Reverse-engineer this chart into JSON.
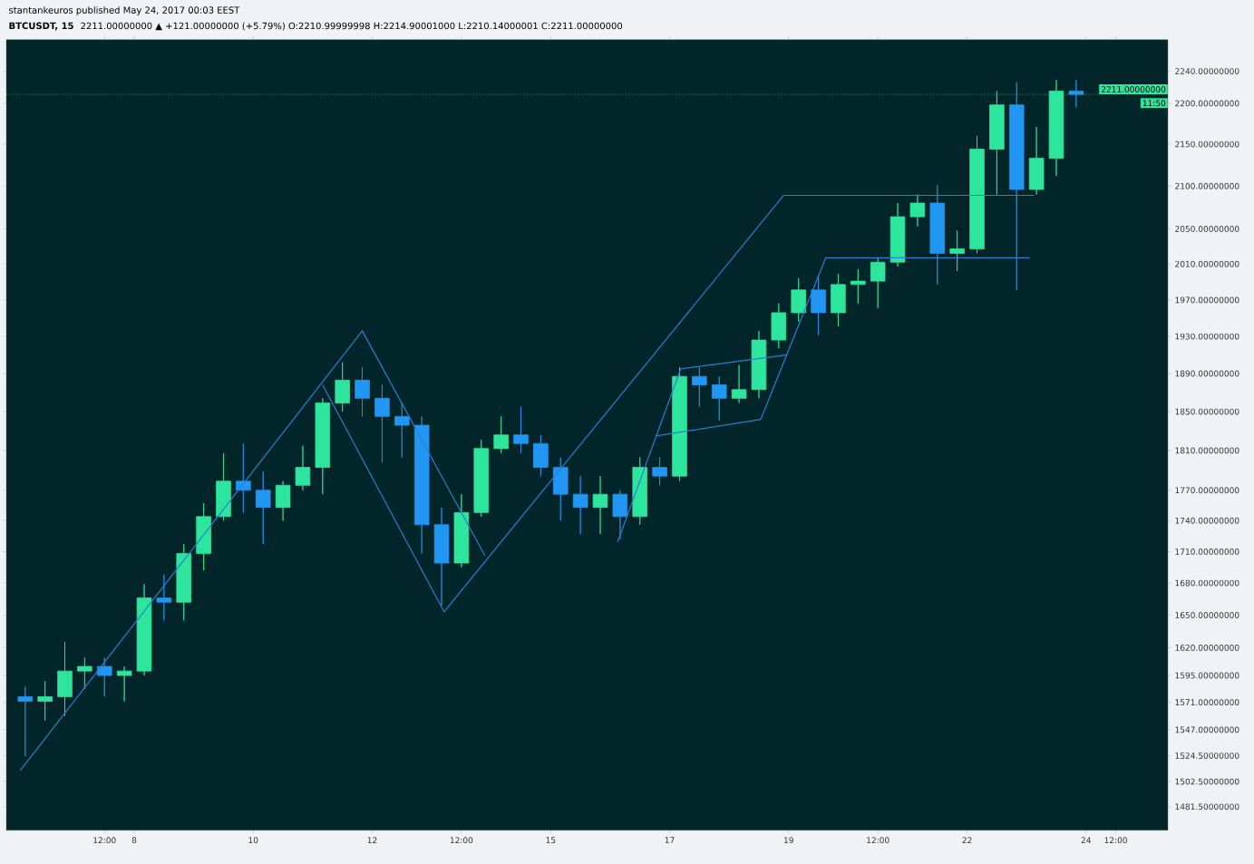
{
  "chart_data": {
    "type": "candlestick",
    "title": "BTCUSDT, 15",
    "subtitle": "2211.00000000 ▲ +121.00000000 (+5.79%) O:2210.99999998 H:2214.90001000 L:2210.14000001 C:2211.00000000",
    "annotations": [
      "stantankeuros published May 24, 2017 00:03 EEST",
      "11:50"
    ],
    "x": [
      "2017-05-06T04:00",
      "2017-05-06T12:00",
      "2017-05-06T20:00",
      "2017-05-07T04:00",
      "2017-05-07T12:00",
      "2017-05-07T20:00",
      "2017-05-08T04:00",
      "2017-05-08T12:00",
      "2017-05-08T20:00",
      "2017-05-09T04:00",
      "2017-05-09T12:00",
      "2017-05-09T20:00",
      "2017-05-10T04:00",
      "2017-05-10T12:00",
      "2017-05-10T20:00",
      "2017-05-11T04:00",
      "2017-05-11T12:00",
      "2017-05-11T20:00",
      "2017-05-12T04:00",
      "2017-05-12T12:00",
      "2017-05-12T20:00",
      "2017-05-13T04:00",
      "2017-05-13T12:00",
      "2017-05-13T20:00",
      "2017-05-14T04:00",
      "2017-05-14T12:00",
      "2017-05-14T20:00",
      "2017-05-15T04:00",
      "2017-05-15T12:00",
      "2017-05-15T20:00",
      "2017-05-16T04:00",
      "2017-05-16T12:00",
      "2017-05-16T20:00",
      "2017-05-17T04:00",
      "2017-05-17T12:00",
      "2017-05-17T20:00",
      "2017-05-18T04:00",
      "2017-05-18T12:00",
      "2017-05-18T20:00",
      "2017-05-19T04:00",
      "2017-05-19T12:00",
      "2017-05-19T20:00",
      "2017-05-20T04:00",
      "2017-05-20T12:00",
      "2017-05-20T20:00",
      "2017-05-21T04:00",
      "2017-05-21T12:00",
      "2017-05-21T20:00",
      "2017-05-22T04:00",
      "2017-05-22T12:00",
      "2017-05-22T20:00",
      "2017-05-23T04:00",
      "2017-05-23T12:00",
      "2017-05-23T20:00"
    ],
    "ohlc": [
      [
        1576,
        1585,
        1524,
        1572
      ],
      [
        1572,
        1590,
        1555,
        1576
      ],
      [
        1576,
        1625,
        1559,
        1599
      ],
      [
        1599,
        1611,
        1583,
        1603
      ],
      [
        1603,
        1611,
        1576,
        1595
      ],
      [
        1595,
        1603,
        1572,
        1599
      ],
      [
        1599,
        1679,
        1595,
        1666
      ],
      [
        1666,
        1688,
        1645,
        1662
      ],
      [
        1662,
        1717,
        1645,
        1708
      ],
      [
        1708,
        1757,
        1692,
        1744
      ],
      [
        1744,
        1807,
        1740,
        1779
      ],
      [
        1779,
        1817,
        1748,
        1770
      ],
      [
        1770,
        1789,
        1717,
        1753
      ],
      [
        1753,
        1779,
        1740,
        1775
      ],
      [
        1775,
        1815,
        1770,
        1793
      ],
      [
        1793,
        1864,
        1766,
        1859
      ],
      [
        1859,
        1902,
        1850,
        1883
      ],
      [
        1883,
        1897,
        1845,
        1864
      ],
      [
        1864,
        1878,
        1798,
        1845
      ],
      [
        1845,
        1859,
        1803,
        1836
      ],
      [
        1836,
        1845,
        1708,
        1736
      ],
      [
        1736,
        1753,
        1659,
        1699
      ],
      [
        1699,
        1766,
        1695,
        1748
      ],
      [
        1748,
        1821,
        1744,
        1812
      ],
      [
        1812,
        1845,
        1807,
        1826
      ],
      [
        1826,
        1855,
        1807,
        1817
      ],
      [
        1817,
        1826,
        1784,
        1793
      ],
      [
        1793,
        1803,
        1740,
        1766
      ],
      [
        1766,
        1784,
        1727,
        1753
      ],
      [
        1753,
        1784,
        1727,
        1766
      ],
      [
        1766,
        1770,
        1722,
        1744
      ],
      [
        1744,
        1803,
        1736,
        1793
      ],
      [
        1793,
        1803,
        1775,
        1784
      ],
      [
        1784,
        1897,
        1779,
        1887
      ],
      [
        1887,
        1897,
        1855,
        1878
      ],
      [
        1878,
        1887,
        1841,
        1864
      ],
      [
        1864,
        1899,
        1859,
        1873
      ],
      [
        1873,
        1936,
        1864,
        1926
      ],
      [
        1926,
        1966,
        1917,
        1956
      ],
      [
        1956,
        1994,
        1946,
        1981
      ],
      [
        1981,
        1997,
        1931,
        1956
      ],
      [
        1956,
        1999,
        1941,
        1987
      ],
      [
        1987,
        2004,
        1966,
        1991
      ],
      [
        1991,
        2017,
        1961,
        2012
      ],
      [
        2012,
        2080,
        2007,
        2064
      ],
      [
        2064,
        2090,
        2053,
        2080
      ],
      [
        2080,
        2101,
        1987,
        2022
      ],
      [
        2022,
        2048,
        2002,
        2027
      ],
      [
        2027,
        2160,
        2022,
        2144
      ],
      [
        2144,
        2215,
        2090,
        2198
      ],
      [
        2198,
        2226,
        1981,
        2096
      ],
      [
        2096,
        2171,
        2090,
        2133
      ],
      [
        2133,
        2229,
        2112,
        2215
      ],
      [
        2215,
        2229,
        2195,
        2211
      ]
    ],
    "colors": [
      "#2196f3",
      "#2ee59d",
      "#2ee59d",
      "#2ee59d",
      "#2196f3",
      "#2ee59d",
      "#2ee59d",
      "#2196f3",
      "#2ee59d",
      "#2ee59d",
      "#2ee59d",
      "#2196f3",
      "#2196f3",
      "#2ee59d",
      "#2ee59d",
      "#2ee59d",
      "#2ee59d",
      "#2196f3",
      "#2196f3",
      "#2196f3",
      "#2196f3",
      "#2196f3",
      "#2ee59d",
      "#2ee59d",
      "#2ee59d",
      "#2196f3",
      "#2196f3",
      "#2196f3",
      "#2196f3",
      "#2ee59d",
      "#2196f3",
      "#2ee59d",
      "#2196f3",
      "#2ee59d",
      "#2196f3",
      "#2196f3",
      "#2ee59d",
      "#2ee59d",
      "#2ee59d",
      "#2ee59d",
      "#2196f3",
      "#2ee59d",
      "#2ee59d",
      "#2ee59d",
      "#2ee59d",
      "#2ee59d",
      "#2196f3",
      "#2ee59d",
      "#2ee59d",
      "#2ee59d",
      "#2196f3",
      "#2ee59d",
      "#2ee59d",
      "#2196f3"
    ],
    "series": [
      {
        "type": "line",
        "color": "#2a7fd4",
        "x": [
          "2017-05-06T02:00",
          "2017-05-11T20:00",
          "2017-05-13T21:30"
        ],
        "values": [
          1512,
          1936,
          1706
        ]
      },
      {
        "type": "line",
        "color": "#2a7fd4",
        "x": [
          "2017-05-11T04:00",
          "2017-05-13T05:00",
          "2017-05-18T22:00",
          "2017-05-23T03:00"
        ],
        "values": [
          1878,
          1653,
          2089,
          2089
        ]
      },
      {
        "type": "line",
        "color": "#2a7fd4",
        "x": [
          "2017-05-16T03:00",
          "2017-05-17T04:30",
          "2017-05-18T23:30"
        ],
        "values": [
          1719,
          1895,
          1910
        ]
      },
      {
        "type": "line",
        "color": "#2a7fd4",
        "x": [
          "2017-05-16T18:30",
          "2017-05-18T12:45",
          "2017-05-19T15:00",
          "2017-05-23T01:15"
        ],
        "values": [
          1825,
          1842,
          2017,
          2017
        ]
      }
    ],
    "ref_lines": [
      {
        "axis": "y",
        "value": 2211,
        "label": "2211.00000000",
        "color": "#2ee59d",
        "line_style": "dotted"
      }
    ],
    "log": true,
    "xlim": [
      "2017-05-05T20:24",
      "2017-05-25T09:00"
    ],
    "xticks": [
      {
        "value": "2017-05-07T12:00",
        "label": "12:00"
      },
      {
        "value": "2017-05-08",
        "label": "8"
      },
      {
        "value": "2017-05-10",
        "label": "10"
      },
      {
        "value": "2017-05-12",
        "label": "12"
      },
      {
        "value": "2017-05-13T12:00",
        "label": "12:00"
      },
      {
        "value": "2017-05-15",
        "label": "15"
      },
      {
        "value": "2017-05-17",
        "label": "17"
      },
      {
        "value": "2017-05-19",
        "label": "19"
      },
      {
        "value": "2017-05-20T12:00",
        "label": "12:00"
      },
      {
        "value": "2017-05-22",
        "label": "22"
      },
      {
        "value": "2017-05-24",
        "label": "24"
      },
      {
        "value": "2017-05-24T12:00",
        "label": "12:00"
      }
    ],
    "ylim": [
      1462,
      2280
    ],
    "yticks": [
      {
        "value": 1481.5,
        "label": "1481.50000000"
      },
      {
        "value": 1502.5,
        "label": "1502.50000000"
      },
      {
        "value": 1524.5,
        "label": "1524.50000000"
      },
      {
        "value": 1547,
        "label": "1547.00000000"
      },
      {
        "value": 1571,
        "label": "1571.00000000"
      },
      {
        "value": 1595,
        "label": "1595.00000000"
      },
      {
        "value": 1620,
        "label": "1620.00000000"
      },
      {
        "value": 1650,
        "label": "1650.00000000"
      },
      {
        "value": 1680,
        "label": "1680.00000000"
      },
      {
        "value": 1710,
        "label": "1710.00000000"
      },
      {
        "value": 1740,
        "label": "1740.00000000"
      },
      {
        "value": 1770,
        "label": "1770.00000000"
      },
      {
        "value": 1810,
        "label": "1810.00000000"
      },
      {
        "value": 1850,
        "label": "1850.00000000"
      },
      {
        "value": 1890,
        "label": "1890.00000000"
      },
      {
        "value": 1930,
        "label": "1930.00000000"
      },
      {
        "value": 1970,
        "label": "1970.00000000"
      },
      {
        "value": 2010,
        "label": "2010.00000000"
      },
      {
        "value": 2050,
        "label": "2050.00000000"
      },
      {
        "value": 2100,
        "label": "2100.00000000"
      },
      {
        "value": 2150,
        "label": "2150.00000000"
      },
      {
        "value": 2200,
        "label": "2200.00000000"
      },
      {
        "value": 2240,
        "label": "2240.00000000"
      }
    ]
  }
}
